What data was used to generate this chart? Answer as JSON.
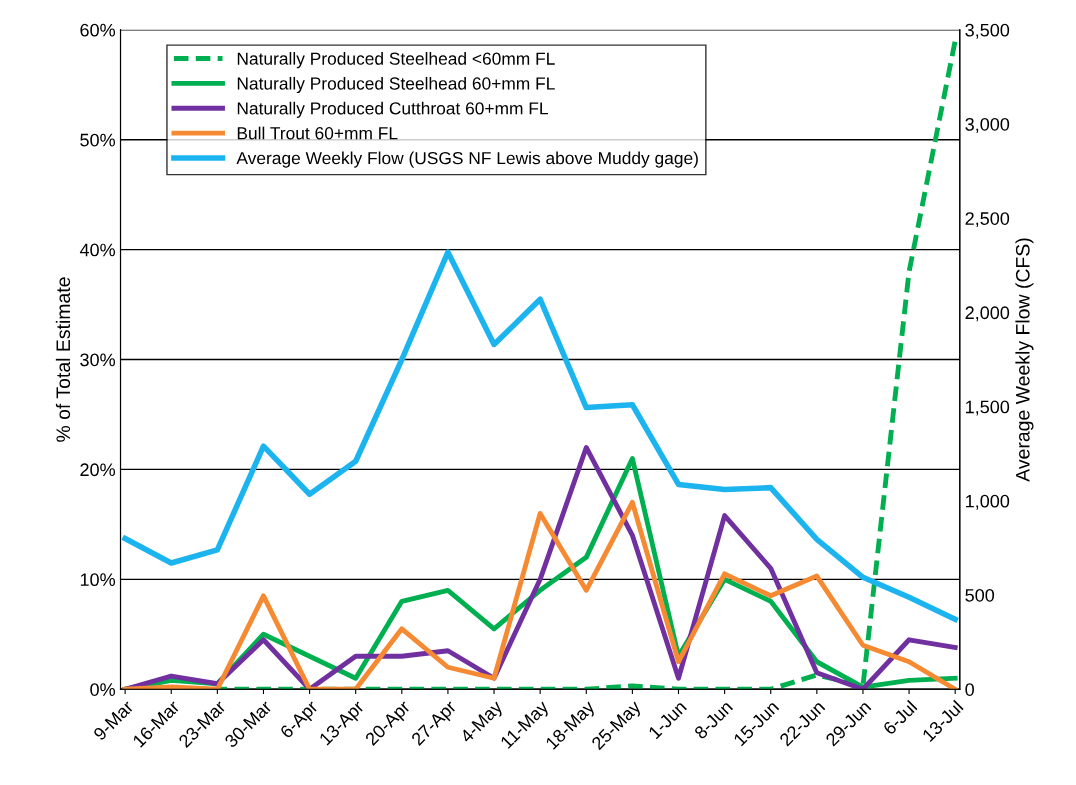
{
  "chart_data": {
    "type": "line",
    "categories": [
      "9-Mar",
      "16-Mar",
      "23-Mar",
      "30-Mar",
      "6-Apr",
      "13-Apr",
      "20-Apr",
      "27-Apr",
      "4-May",
      "11-May",
      "18-May",
      "25-May",
      "1-Jun",
      "8-Jun",
      "15-Jun",
      "22-Jun",
      "29-Jun",
      "6-Jul",
      "13-Jul"
    ],
    "ylabel": "% of Total Estimate",
    "y2label": "Average Weekly Flow (CFS)",
    "ylim": [
      0,
      60
    ],
    "yticks": [
      {
        "value": 0,
        "label": "0%"
      },
      {
        "value": 10,
        "label": "10%"
      },
      {
        "value": 20,
        "label": "20%"
      },
      {
        "value": 30,
        "label": "30%"
      },
      {
        "value": 40,
        "label": "40%"
      },
      {
        "value": 50,
        "label": "50%"
      },
      {
        "value": 60,
        "label": "60%"
      }
    ],
    "y2lim": [
      0,
      3500
    ],
    "y2ticks": [
      {
        "value": 0,
        "label": "0"
      },
      {
        "value": 500,
        "label": "500"
      },
      {
        "value": 1000,
        "label": "1,000"
      },
      {
        "value": 1500,
        "label": "1,500"
      },
      {
        "value": 2000,
        "label": "2,000"
      },
      {
        "value": 2500,
        "label": "2,500"
      },
      {
        "value": 3000,
        "label": "3,000"
      },
      {
        "value": 3500,
        "label": "3,500"
      }
    ],
    "grid": "y",
    "legend": "top left",
    "marker": "none",
    "series": [
      {
        "name": "Naturally Produced Steelhead <60mm FL",
        "color": "#00b050",
        "line_style": "dashed",
        "values": [
          0,
          0,
          0,
          0,
          0,
          0,
          0,
          0,
          0,
          0,
          0,
          0.3,
          0,
          0,
          0,
          1.3,
          0.3,
          38,
          59
        ]
      },
      {
        "name": "Naturally Produced Steelhead 60+mm FL",
        "color": "#00b050",
        "line_style": "solid",
        "values": [
          0,
          0.8,
          0.5,
          5,
          3,
          1,
          8,
          9,
          5.5,
          9,
          12,
          21,
          3,
          10,
          8,
          2.5,
          0.2,
          0.8,
          1
        ]
      },
      {
        "name": "Naturally Produced Cutthroat 60+mm FL",
        "color": "#7030a0",
        "line_style": "solid",
        "values": [
          0,
          1.2,
          0.5,
          4.5,
          0,
          3,
          3,
          3.5,
          1,
          10,
          22,
          14,
          1,
          15.8,
          11,
          1.5,
          0,
          4.5,
          3.8
        ]
      },
      {
        "name": "Bull Trout 60+mm FL",
        "color": "#f58a32",
        "line_style": "solid",
        "values": [
          0,
          0.2,
          0,
          8.5,
          0,
          0,
          5.5,
          2,
          1,
          16,
          9,
          17,
          2.5,
          10.5,
          8.5,
          10.3,
          4,
          2.5,
          0
        ]
      },
      {
        "name": "Average Weekly Flow (USGS NF Lewis above Muddy gage)",
        "color": "#1cb4ef",
        "line_style": "solid",
        "axis": "y2",
        "values": [
          800,
          670,
          740,
          1290,
          1035,
          1210,
          1750,
          2320,
          1830,
          2070,
          1495,
          1510,
          1087,
          1060,
          1070,
          795,
          594,
          488,
          371
        ]
      }
    ]
  }
}
